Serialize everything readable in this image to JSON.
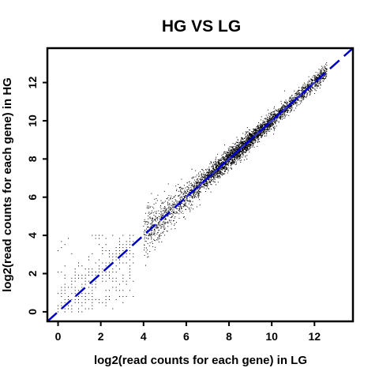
{
  "chart_data": {
    "type": "scatter",
    "title": "HG VS LG",
    "xlabel": "log2(read counts for each gene) in LG",
    "ylabel": "log2(read counts for each gene) in HG",
    "xlim": [
      -0.5,
      13.8
    ],
    "ylim": [
      -0.5,
      13.8
    ],
    "x_ticks": [
      0,
      2,
      4,
      6,
      8,
      10,
      12
    ],
    "y_ticks": [
      0,
      2,
      4,
      6,
      8,
      10,
      12
    ],
    "x_tick_labels": [
      "0",
      "2",
      "4",
      "6",
      "8",
      "10",
      "12"
    ],
    "y_tick_labels": [
      "0",
      "2",
      "4",
      "6",
      "8",
      "10",
      "12"
    ],
    "grid": false,
    "legend": "none",
    "point_color": "#000000",
    "reference_line": {
      "slope": 1,
      "intercept": 0,
      "style": "dashed",
      "color": "#0000cc"
    },
    "fit_line": {
      "color": "#3333cc",
      "x_range": [
        6,
        12
      ]
    },
    "low_count_grid": {
      "x_max": 3.6,
      "y_max": 4.0,
      "step": 0.16
    },
    "point_cloud": {
      "x_range": [
        4,
        12.6
      ],
      "center_density_at": 8.5,
      "spread": 0.28
    }
  }
}
